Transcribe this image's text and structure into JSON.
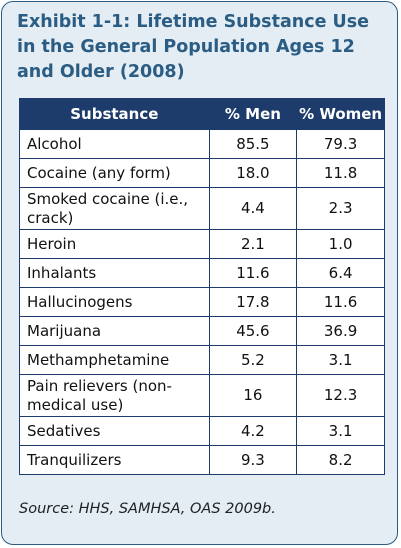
{
  "exhibit": {
    "title": "Exhibit 1-1: Lifetime Substance Use in the General Population Ages 12 and Older (2008)",
    "source": "Source: HHS, SAMHSA, OAS 2009b.",
    "table": {
      "headers": [
        "Substance",
        "% Men",
        "% Women"
      ],
      "rows": [
        {
          "substance": "Alcohol",
          "men": "85.5",
          "women": "79.3"
        },
        {
          "substance": "Cocaine (any form)",
          "men": "18.0",
          "women": "11.8"
        },
        {
          "substance": "Smoked cocaine (i.e., crack)",
          "men": "4.4",
          "women": "2.3"
        },
        {
          "substance": "Heroin",
          "men": "2.1",
          "women": "1.0"
        },
        {
          "substance": "Inhalants",
          "men": "11.6",
          "women": "6.4"
        },
        {
          "substance": "Hallucinogens",
          "men": "17.8",
          "women": "11.6"
        },
        {
          "substance": "Marijuana",
          "men": "45.6",
          "women": "36.9"
        },
        {
          "substance": "Methamphetamine",
          "men": "5.2",
          "women": "3.1"
        },
        {
          "substance": "Pain relievers (non-medical use)",
          "men": "16",
          "women": "12.3"
        },
        {
          "substance": "Sedatives",
          "men": "4.2",
          "women": "3.1"
        },
        {
          "substance": "Tranquilizers",
          "men": "9.3",
          "women": "8.2"
        }
      ]
    }
  }
}
